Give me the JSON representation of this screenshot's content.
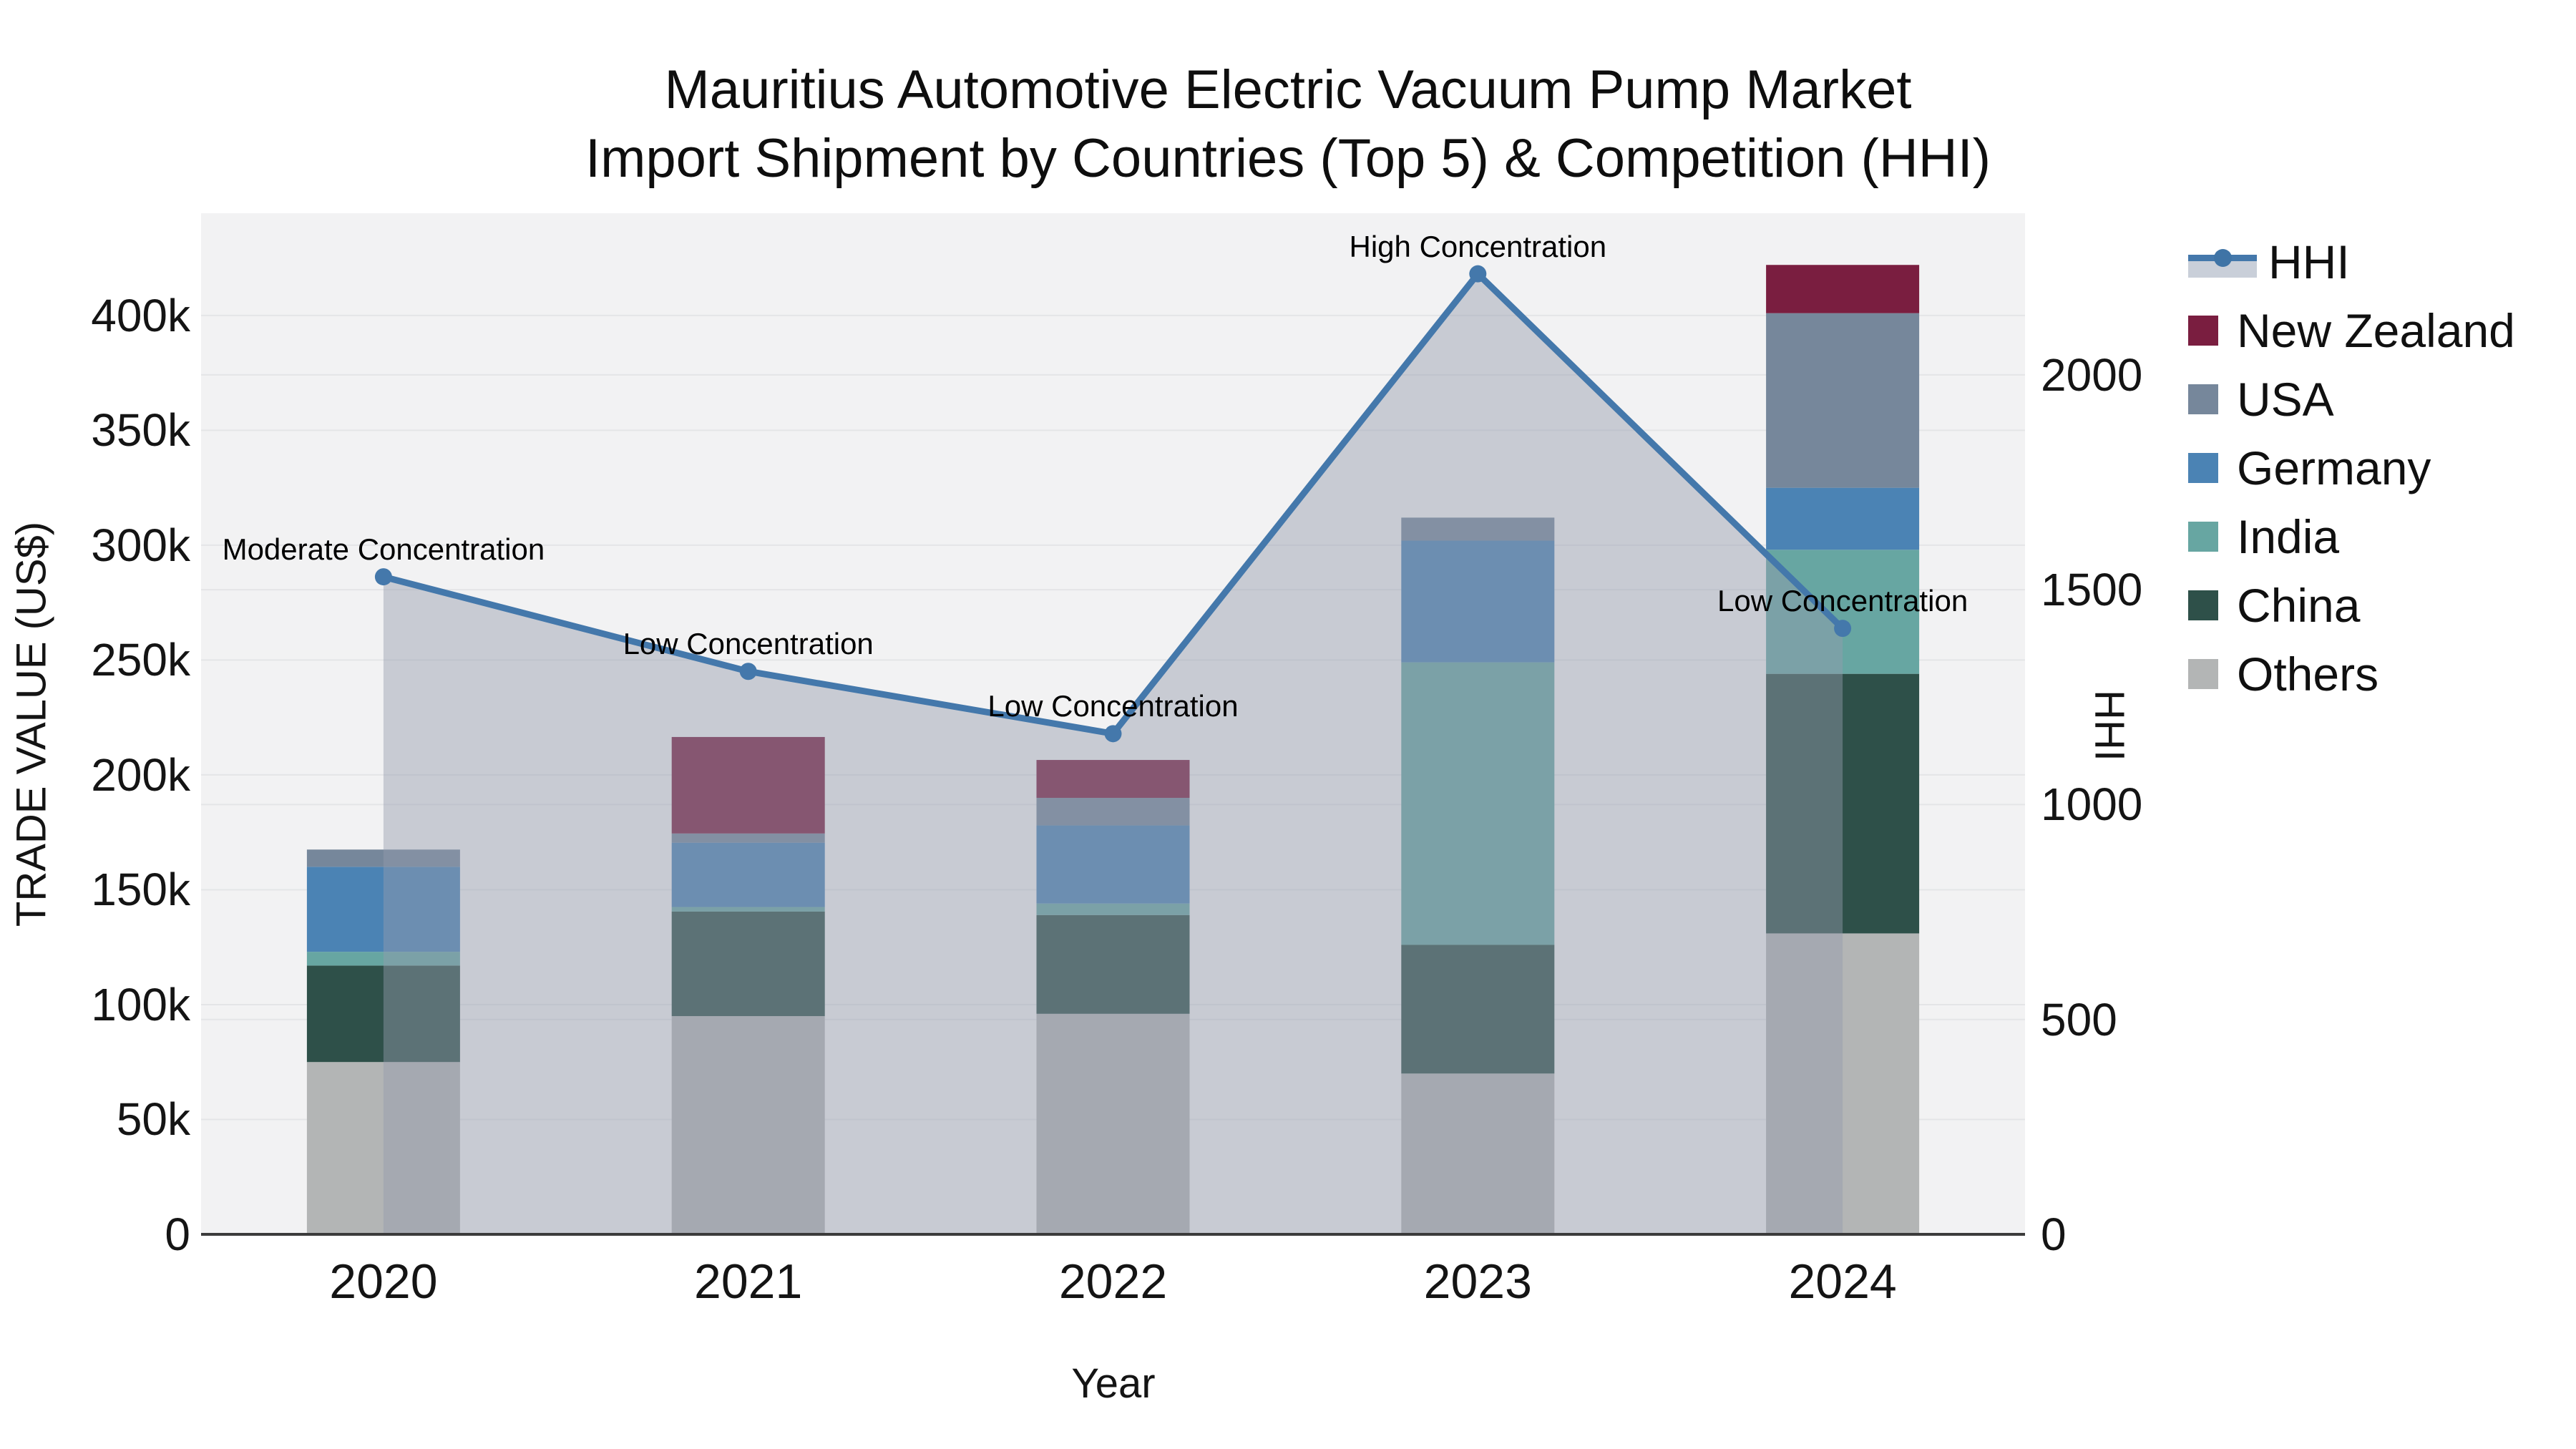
{
  "title": {
    "lines": [
      "Mauritius Automotive Electric Vacuum Pump Market",
      "Import Shipment by Countries (Top 5) & Competition (HHI)"
    ]
  },
  "axes": {
    "x": {
      "title": "Year",
      "categories": [
        "2020",
        "2021",
        "2022",
        "2023",
        "2024"
      ]
    },
    "y_left": {
      "title": "TRADE VALUE (US$)",
      "max": 444500,
      "ticks": [
        {
          "value": 0,
          "label": "0"
        },
        {
          "value": 50000,
          "label": "50k"
        },
        {
          "value": 100000,
          "label": "100k"
        },
        {
          "value": 150000,
          "label": "150k"
        },
        {
          "value": 200000,
          "label": "200k"
        },
        {
          "value": 250000,
          "label": "250k"
        },
        {
          "value": 300000,
          "label": "300k"
        },
        {
          "value": 350000,
          "label": "350k"
        },
        {
          "value": 400000,
          "label": "400k"
        }
      ]
    },
    "y_right": {
      "title": "HHI",
      "max": 2376,
      "ticks": [
        {
          "value": 0,
          "label": "0"
        },
        {
          "value": 500,
          "label": "500"
        },
        {
          "value": 1000,
          "label": "1000"
        },
        {
          "value": 1500,
          "label": "1500"
        },
        {
          "value": 2000,
          "label": "2000"
        }
      ]
    }
  },
  "chart_data": {
    "type": "bar+line",
    "title": "Mauritius Automotive Electric Vacuum Pump Market Import Shipment by Countries (Top 5) & Competition (HHI)",
    "categories": [
      "2020",
      "2021",
      "2022",
      "2023",
      "2024"
    ],
    "bar_unit": "US$",
    "stack_order_bottom_to_top": [
      "Others",
      "China",
      "India",
      "Germany",
      "USA",
      "New Zealand"
    ],
    "series": [
      {
        "name": "Others",
        "color": "#b3b5b5",
        "values": [
          75000,
          95000,
          96000,
          70000,
          131000
        ]
      },
      {
        "name": "China",
        "color": "#2e5049",
        "values": [
          42000,
          45500,
          43000,
          56000,
          113000
        ]
      },
      {
        "name": "India",
        "color": "#67a6a2",
        "values": [
          6000,
          2000,
          5000,
          123000,
          54000
        ]
      },
      {
        "name": "Germany",
        "color": "#4b83b4",
        "values": [
          37000,
          28000,
          34000,
          53000,
          27000
        ]
      },
      {
        "name": "USA",
        "color": "#76879b",
        "values": [
          7500,
          4000,
          12000,
          10000,
          76000
        ]
      },
      {
        "name": "New Zealand",
        "color": "#7a1e40",
        "values": [
          0,
          42000,
          16500,
          0,
          21000
        ]
      }
    ],
    "line": {
      "name": "HHI",
      "axis": "right",
      "color": "#4478ab",
      "fill": "tozeroy",
      "fill_color": "rgba(148,155,173,0.45)",
      "values": [
        1530,
        1310,
        1165,
        2235,
        1410
      ]
    },
    "annotations": [
      {
        "year": "2020",
        "text": "Moderate Concentration"
      },
      {
        "year": "2021",
        "text": "Low Concentration"
      },
      {
        "year": "2022",
        "text": "Low Concentration"
      },
      {
        "year": "2023",
        "text": "High Concentration"
      },
      {
        "year": "2024",
        "text": "Low Concentration"
      }
    ],
    "layout": {
      "plot_bg": "#f2f2f3",
      "grid_color": "#e4e5e7",
      "axis_line_color": "#3b3b3b",
      "grid_on": true,
      "legend_position": "right"
    }
  },
  "legend": {
    "items": [
      {
        "label": "HHI",
        "kind": "line"
      },
      {
        "label": "New Zealand",
        "kind": "square",
        "color": "#7a1e40"
      },
      {
        "label": "USA",
        "kind": "square",
        "color": "#76879b"
      },
      {
        "label": "Germany",
        "kind": "square",
        "color": "#4b83b4"
      },
      {
        "label": "India",
        "kind": "square",
        "color": "#67a6a2"
      },
      {
        "label": "China",
        "kind": "square",
        "color": "#2e5049"
      },
      {
        "label": "Others",
        "kind": "square",
        "color": "#b3b5b5"
      }
    ]
  }
}
